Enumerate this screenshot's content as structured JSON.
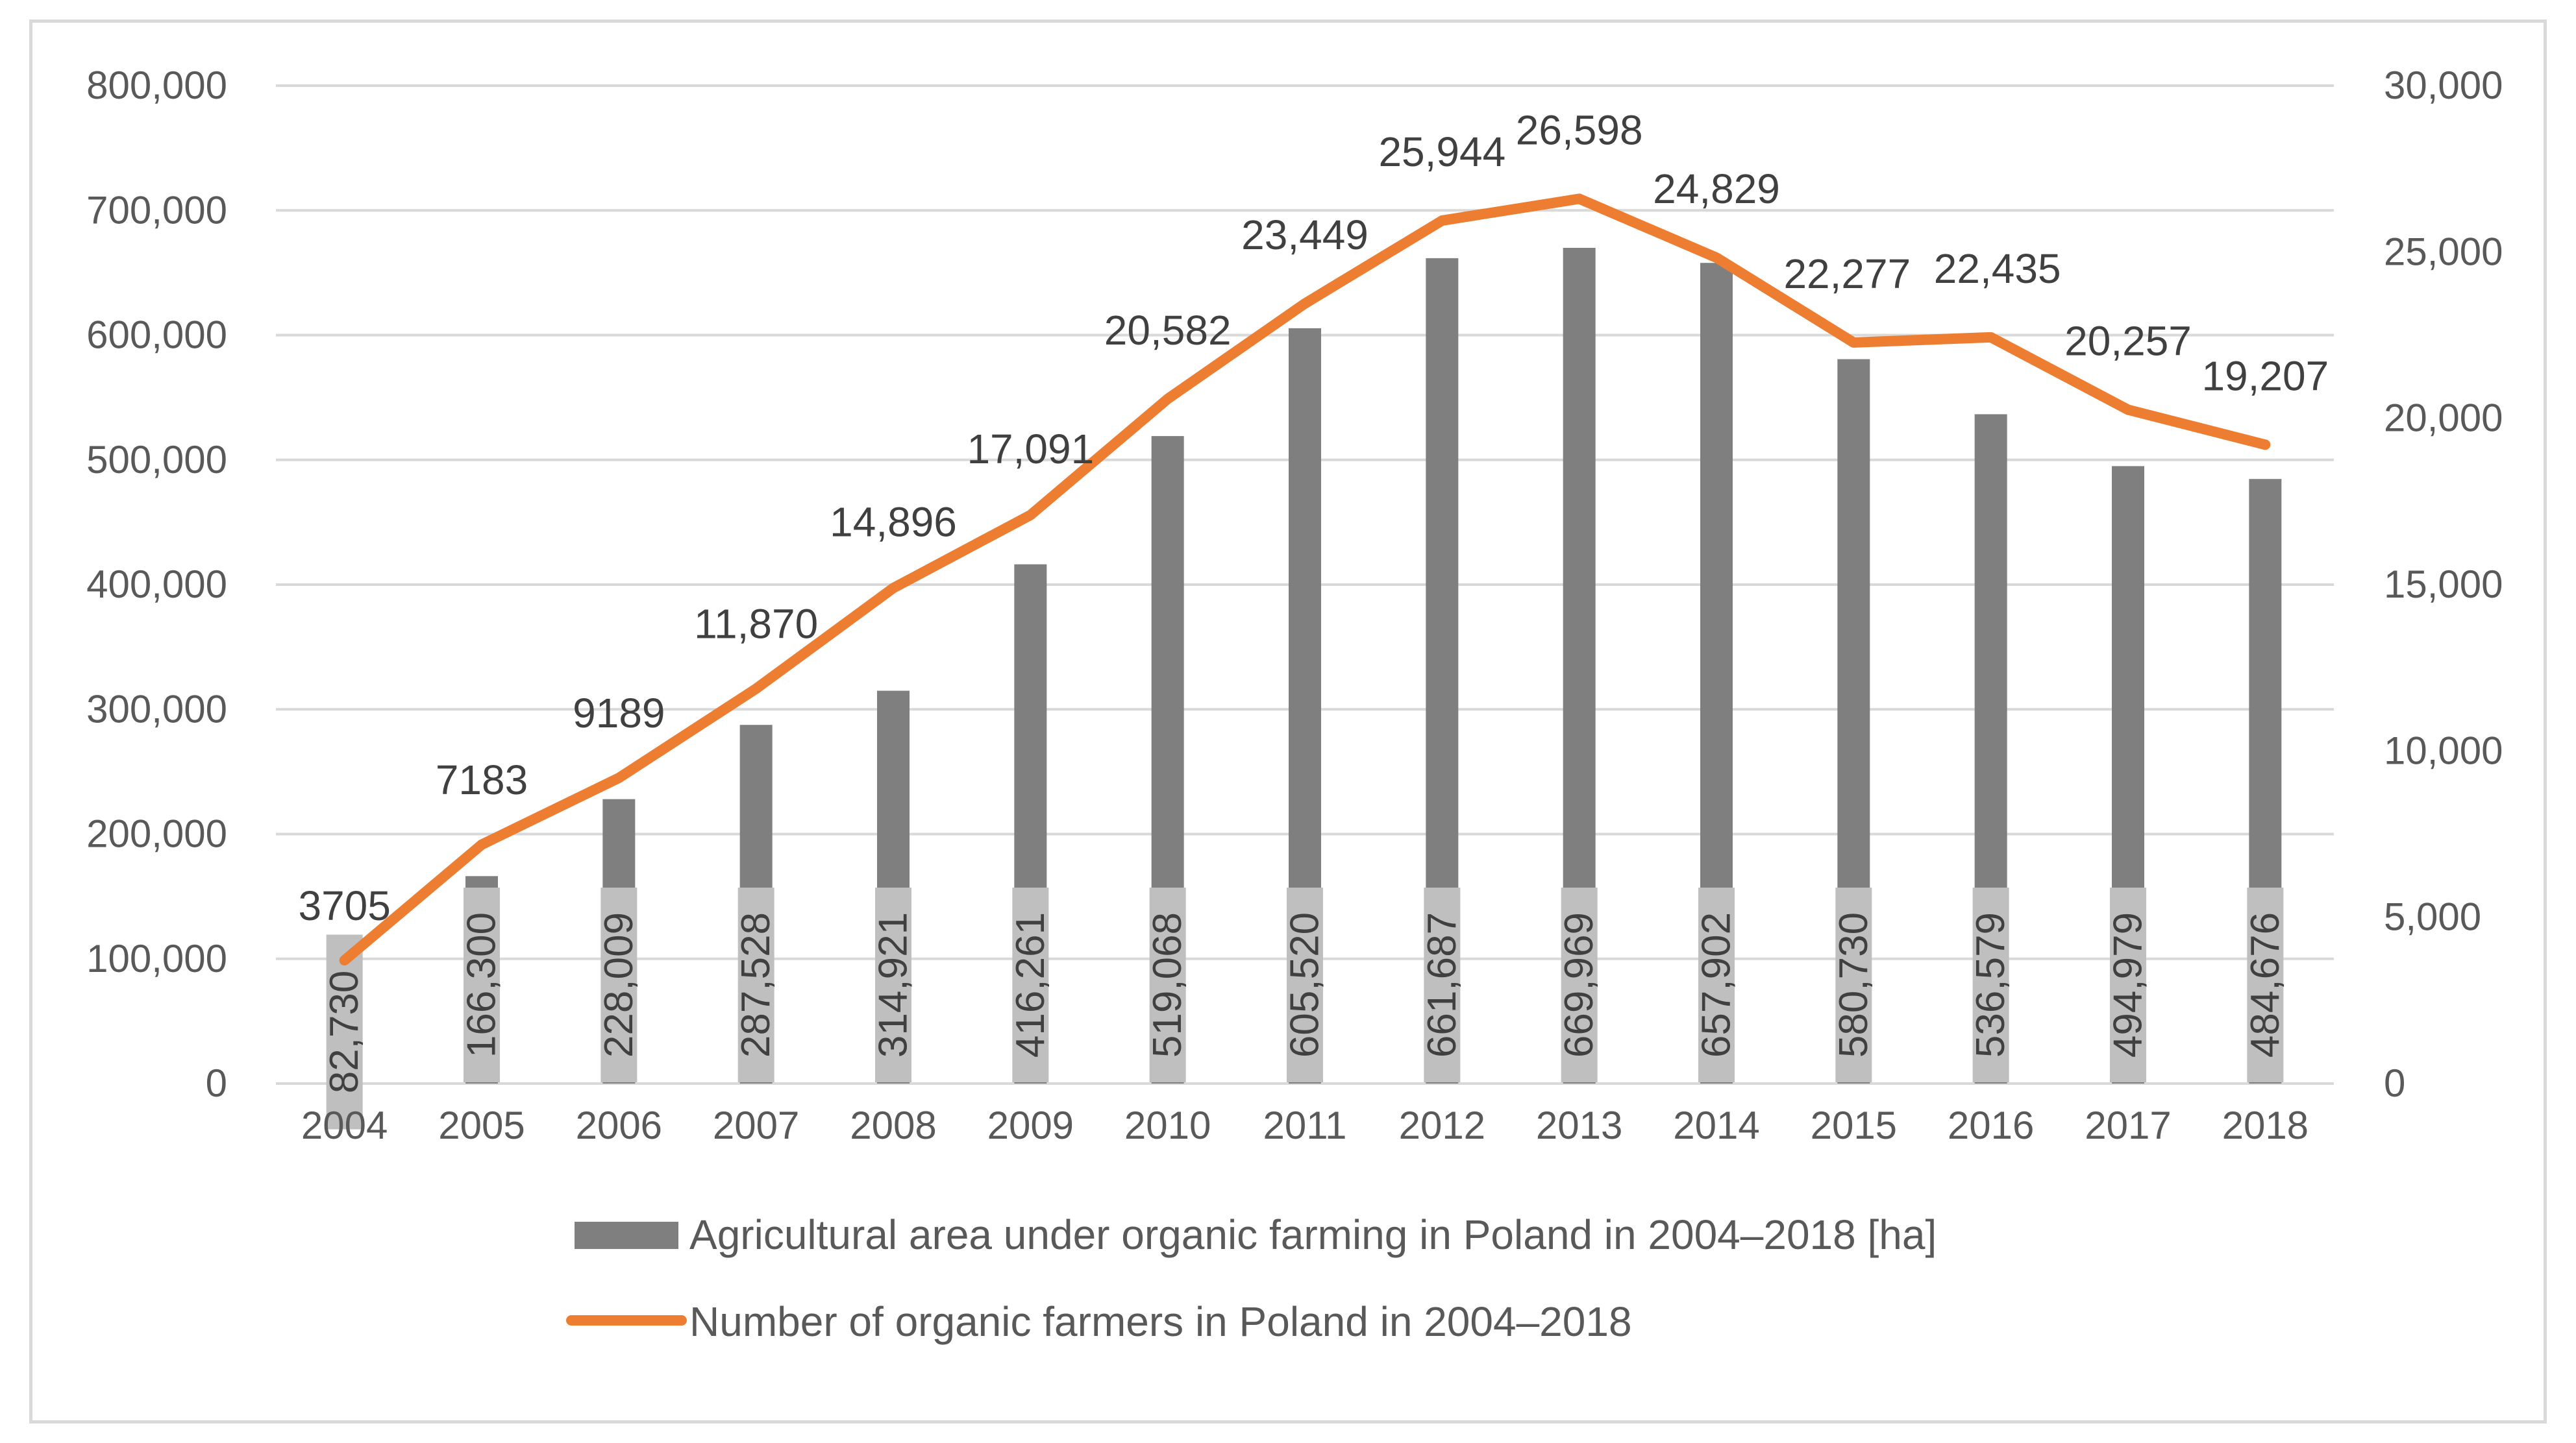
{
  "chart_data": {
    "type": "bar+line",
    "title": "",
    "categories": [
      "2004",
      "2005",
      "2006",
      "2007",
      "2008",
      "2009",
      "2010",
      "2011",
      "2012",
      "2013",
      "2014",
      "2015",
      "2016",
      "2017",
      "2018"
    ],
    "series": [
      {
        "name": "Agricultural area under organic farming in Poland in 2004–2018 [ha]",
        "type": "bar",
        "axis": "left",
        "color": "#7f7f7f",
        "values": [
          82730,
          166300,
          228009,
          287528,
          314921,
          416261,
          519068,
          605520,
          661687,
          669969,
          657902,
          580730,
          536579,
          494979,
          484676
        ],
        "labels": [
          "82,730",
          "166,300",
          "228,009",
          "287,528",
          "314,921",
          "416,261",
          "519,068",
          "605,520",
          "661,687",
          "669,969",
          "657,902",
          "580,730",
          "536,579",
          "494,979",
          "484,676"
        ]
      },
      {
        "name": "Number of organic farmers in Poland in 2004–2018",
        "type": "line",
        "axis": "right",
        "color": "#ed7d31",
        "values": [
          3705,
          7183,
          9189,
          11870,
          14896,
          17091,
          20582,
          23449,
          25944,
          26598,
          24829,
          22277,
          22435,
          20257,
          19207
        ],
        "labels": [
          "3705",
          "7183",
          "9189",
          "11,870",
          "14,896",
          "17,091",
          "20,582",
          "23,449",
          "25,944",
          "26,598",
          "24,829",
          "22,277",
          "22,435",
          "20,257",
          "19,207"
        ]
      }
    ],
    "y_left": {
      "range": [
        0,
        800000
      ],
      "ticks": [
        0,
        100000,
        200000,
        300000,
        400000,
        500000,
        600000,
        700000,
        800000
      ],
      "tick_labels": [
        "0",
        "100,000",
        "200,000",
        "300,000",
        "400,000",
        "500,000",
        "600,000",
        "700,000",
        "800,000"
      ]
    },
    "y_right": {
      "range": [
        0,
        30000
      ],
      "ticks": [
        0,
        5000,
        10000,
        15000,
        20000,
        25000,
        30000
      ],
      "tick_labels": [
        "0",
        "5,000",
        "10,000",
        "15,000",
        "20,000",
        "25,000",
        "30,000"
      ]
    },
    "xlabel": "",
    "ylabel": "",
    "grid": true,
    "legend_position": "bottom"
  }
}
